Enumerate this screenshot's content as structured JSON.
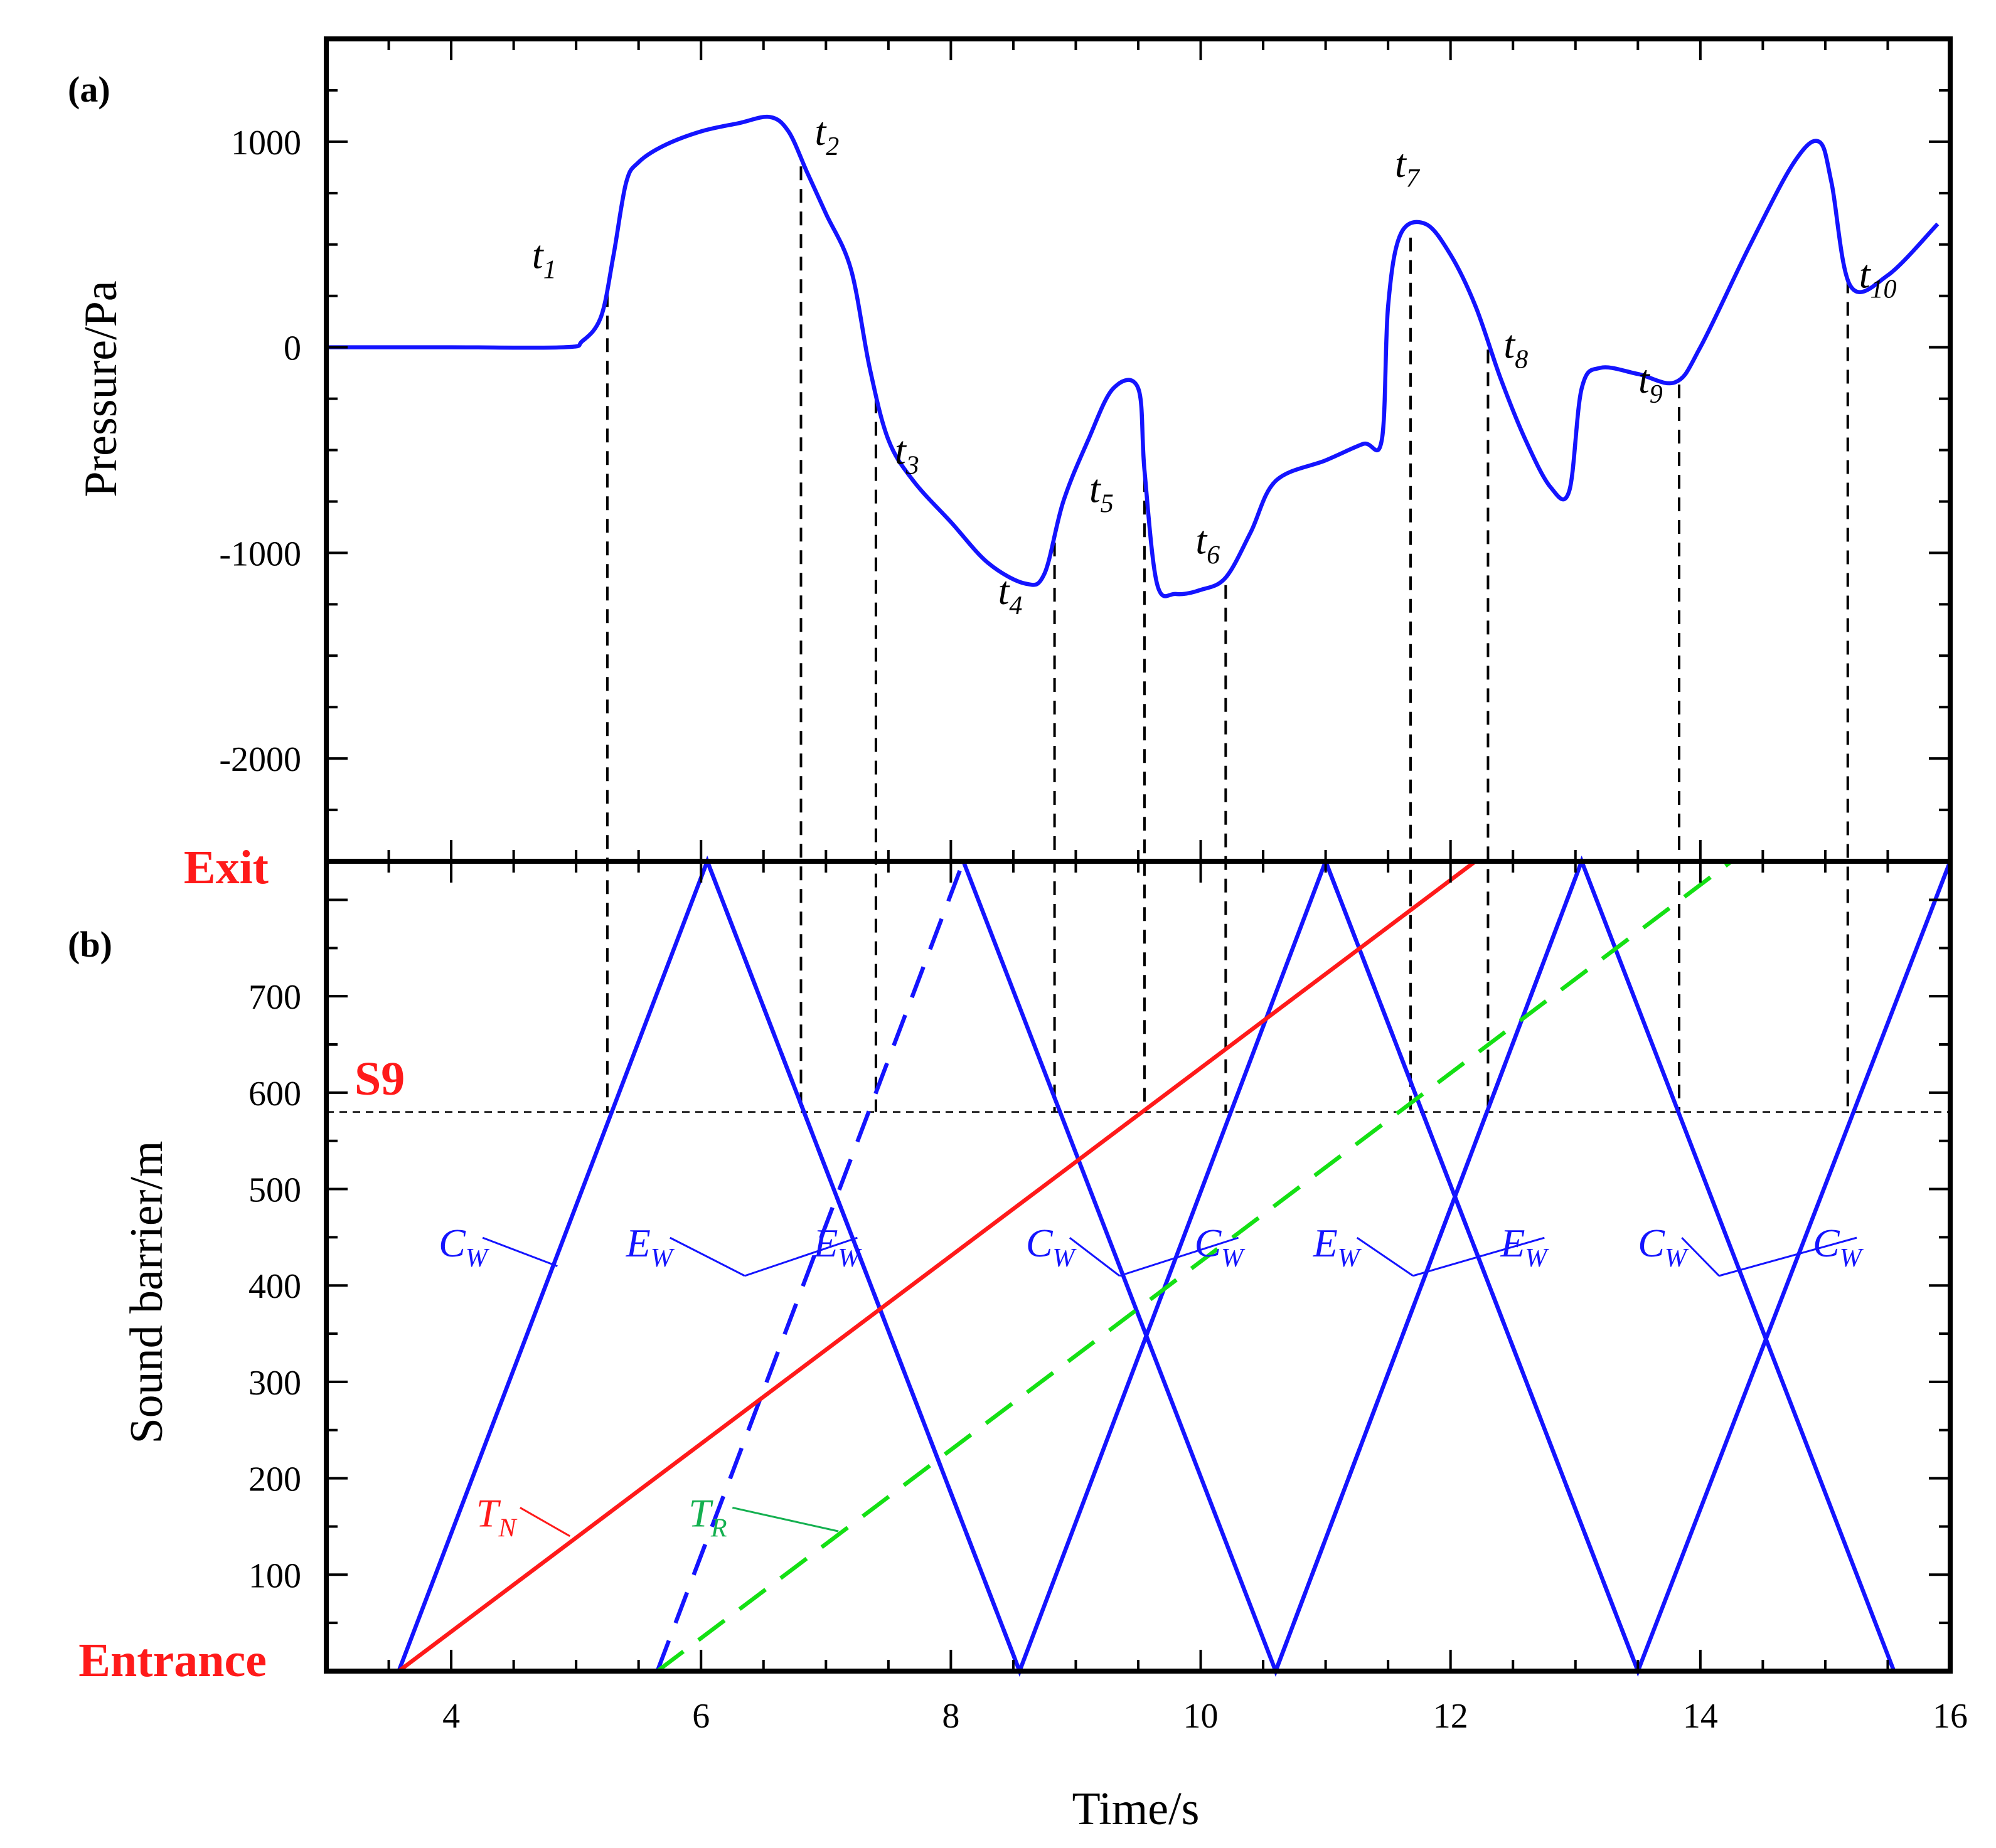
{
  "chart_data": [
    {
      "panel": "(a)",
      "type": "line",
      "ylabel": "Pressure/Pa",
      "xlim": [
        3,
        16
      ],
      "ylim": [
        -2500,
        1500
      ],
      "yticks": [
        1000,
        0,
        -1000,
        -2000
      ],
      "ytick_labels": [
        "1000",
        "0",
        "-1000",
        "-2000"
      ],
      "series": [
        {
          "name": "pressure",
          "color": "#1414ff",
          "x": [
            3.0,
            4.0,
            4.9,
            5.05,
            5.2,
            5.3,
            5.4,
            5.5,
            5.7,
            6.0,
            6.3,
            6.55,
            6.7,
            6.85,
            7.0,
            7.2,
            7.35,
            7.5,
            7.7,
            8.0,
            8.3,
            8.6,
            8.75,
            8.9,
            9.1,
            9.3,
            9.5,
            9.55,
            9.65,
            9.8,
            10.0,
            10.2,
            10.4,
            10.6,
            11.0,
            11.3,
            11.45,
            11.5,
            11.6,
            11.8,
            12.0,
            12.2,
            12.4,
            12.6,
            12.8,
            12.95,
            13.05,
            13.2,
            13.5,
            13.8,
            14.0,
            14.4,
            14.75,
            14.95,
            15.05,
            15.2,
            15.5,
            15.9
          ],
          "y": [
            0,
            0,
            0,
            30,
            150,
            450,
            800,
            900,
            980,
            1050,
            1090,
            1120,
            1050,
            850,
            650,
            380,
            -100,
            -450,
            -650,
            -850,
            -1050,
            -1150,
            -1100,
            -750,
            -450,
            -200,
            -200,
            -600,
            -1150,
            -1200,
            -1180,
            -1120,
            -900,
            -650,
            -550,
            -470,
            -450,
            200,
            550,
            600,
            450,
            200,
            -150,
            -450,
            -680,
            -700,
            -200,
            -100,
            -130,
            -170,
            0,
            500,
            900,
            1000,
            800,
            300,
            350,
            600
          ]
        }
      ],
      "annotations": [
        {
          "label": "t",
          "sub": "1",
          "x": 5.25
        },
        {
          "label": "t",
          "sub": "2",
          "x": 6.8
        },
        {
          "label": "t",
          "sub": "3",
          "x": 7.4
        },
        {
          "label": "t",
          "sub": "4",
          "x": 8.83
        },
        {
          "label": "t",
          "sub": "5",
          "x": 9.55
        },
        {
          "label": "t",
          "sub": "6",
          "x": 10.2
        },
        {
          "label": "t",
          "sub": "7",
          "x": 11.68
        },
        {
          "label": "t",
          "sub": "8",
          "x": 12.3
        },
        {
          "label": "t",
          "sub": "9",
          "x": 13.83
        },
        {
          "label": "t",
          "sub": "10",
          "x": 15.18
        }
      ]
    },
    {
      "panel": "(b)",
      "type": "line",
      "xlabel": "Time/s",
      "ylabel": "Sound barrier/m",
      "xlim": [
        3,
        16
      ],
      "ylim": [
        0,
        840
      ],
      "xticks": [
        4,
        6,
        8,
        10,
        12,
        14,
        16
      ],
      "xtick_labels": [
        "4",
        "6",
        "8",
        "10",
        "12",
        "14",
        "16"
      ],
      "yticks": [
        100,
        200,
        300,
        400,
        500,
        600,
        700
      ],
      "ytick_labels": [
        "100",
        "200",
        "300",
        "400",
        "500",
        "600",
        "700"
      ],
      "top_label": "Exit",
      "bottom_label": "Entrance",
      "reference_line": {
        "label": "S9",
        "y": 580
      },
      "series": [
        {
          "name": "C_W",
          "style": "solid",
          "color": "#1414ff",
          "x": [
            3.58,
            6.05,
            8.55,
            11.0,
            13.5,
            16.0
          ],
          "y": [
            0,
            840,
            0,
            840,
            0,
            840
          ]
        },
        {
          "name": "C_W",
          "style": "solid",
          "color": "#1414ff",
          "x": [
            8.1,
            10.6,
            13.05,
            15.55
          ],
          "y": [
            840,
            0,
            840,
            0
          ]
        },
        {
          "name": "E_W",
          "style": "dashed",
          "color": "#1414ff",
          "x": [
            6.05,
            8.55
          ],
          "y": [
            840,
            0
          ]
        },
        {
          "name": "E_W",
          "style": "dashed",
          "color": "#1414ff",
          "x": [
            5.65,
            8.1
          ],
          "y": [
            0,
            840
          ]
        },
        {
          "name": "E_W",
          "style": "dashed",
          "color": "#1414ff",
          "x": [
            11.0,
            13.5
          ],
          "y": [
            840,
            0
          ]
        },
        {
          "name": "E_W",
          "style": "dashed",
          "color": "#1414ff",
          "x": [
            10.6,
            13.05
          ],
          "y": [
            0,
            840
          ]
        },
        {
          "name": "T_N",
          "style": "solid",
          "color": "#ff1a1a",
          "x": [
            3.58,
            12.2
          ],
          "y": [
            0,
            840
          ]
        },
        {
          "name": "T_R",
          "style": "dashed",
          "color": "#14e014",
          "x": [
            5.65,
            14.25
          ],
          "y": [
            0,
            840
          ]
        }
      ],
      "line_labels": [
        {
          "label": "C",
          "sub": "W",
          "color": "#1414ff"
        },
        {
          "label": "E",
          "sub": "W",
          "color": "#1414ff"
        },
        {
          "label": "E",
          "sub": "W",
          "color": "#1414ff"
        },
        {
          "label": "C",
          "sub": "W",
          "color": "#1414ff"
        },
        {
          "label": "C",
          "sub": "W",
          "color": "#1414ff"
        },
        {
          "label": "E",
          "sub": "W",
          "color": "#1414ff"
        },
        {
          "label": "E",
          "sub": "W",
          "color": "#1414ff"
        },
        {
          "label": "C",
          "sub": "W",
          "color": "#1414ff"
        },
        {
          "label": "C",
          "sub": "W",
          "color": "#1414ff"
        },
        {
          "label": "T",
          "sub": "N",
          "color": "#ff1a1a"
        },
        {
          "label": "T",
          "sub": "R",
          "color": "#14b050"
        }
      ]
    }
  ]
}
